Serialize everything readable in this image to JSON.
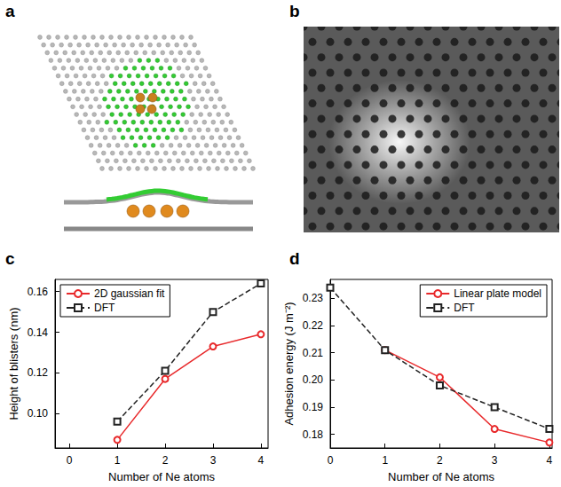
{
  "panels": [
    {
      "label": "a"
    },
    {
      "label": "b"
    }
  ],
  "chart_data": [
    {
      "panel": "c",
      "type": "line",
      "x_label": "Number of Ne atoms",
      "y_label": "Height of blisters (nm)",
      "xlim": [
        -0.3,
        4.15
      ],
      "xticks": [
        0,
        1,
        2,
        3,
        4
      ],
      "ylim": [
        0.083,
        0.166
      ],
      "yticks": [
        {
          "value": 0.1,
          "label": "0.10"
        },
        0.12,
        0.14,
        0.16
      ],
      "grid": false,
      "legend": "upper left",
      "series": [
        {
          "name": "2D gaussian fit",
          "color": "#e8292b",
          "marker": "circle",
          "line_style": "solid",
          "x": [
            1,
            2,
            3,
            4
          ],
          "values": [
            0.087,
            0.117,
            0.133,
            0.139
          ]
        },
        {
          "name": "DFT",
          "color": "#222222",
          "marker": "square",
          "line_style": "dashed",
          "x": [
            1,
            2,
            3,
            4
          ],
          "values": [
            0.096,
            0.121,
            0.15,
            0.164
          ]
        }
      ]
    },
    {
      "panel": "d",
      "type": "line",
      "x_label": "Number of Ne atoms",
      "y_label": "Adhesion energy (J m⁻²)",
      "xlim": [
        0,
        4.05
      ],
      "xticks": [
        0,
        1,
        2,
        3,
        4
      ],
      "ylim": [
        0.175,
        0.237
      ],
      "yticks": [
        0.18,
        0.19,
        {
          "value": 0.2,
          "label": "0.20"
        },
        0.21,
        0.22,
        0.23
      ],
      "grid": false,
      "legend": "upper right",
      "series": [
        {
          "name": "Linear plate model",
          "color": "#e8292b",
          "marker": "circle",
          "line_style": "solid",
          "x": [
            1,
            2,
            3,
            4
          ],
          "values": [
            0.211,
            0.201,
            0.182,
            0.177
          ]
        },
        {
          "name": "DFT",
          "color": "#222222",
          "marker": "square",
          "line_style": "dashed",
          "x": [
            0,
            1,
            2,
            3,
            4
          ],
          "values": [
            0.234,
            0.211,
            0.198,
            0.19,
            0.182
          ]
        }
      ]
    }
  ]
}
